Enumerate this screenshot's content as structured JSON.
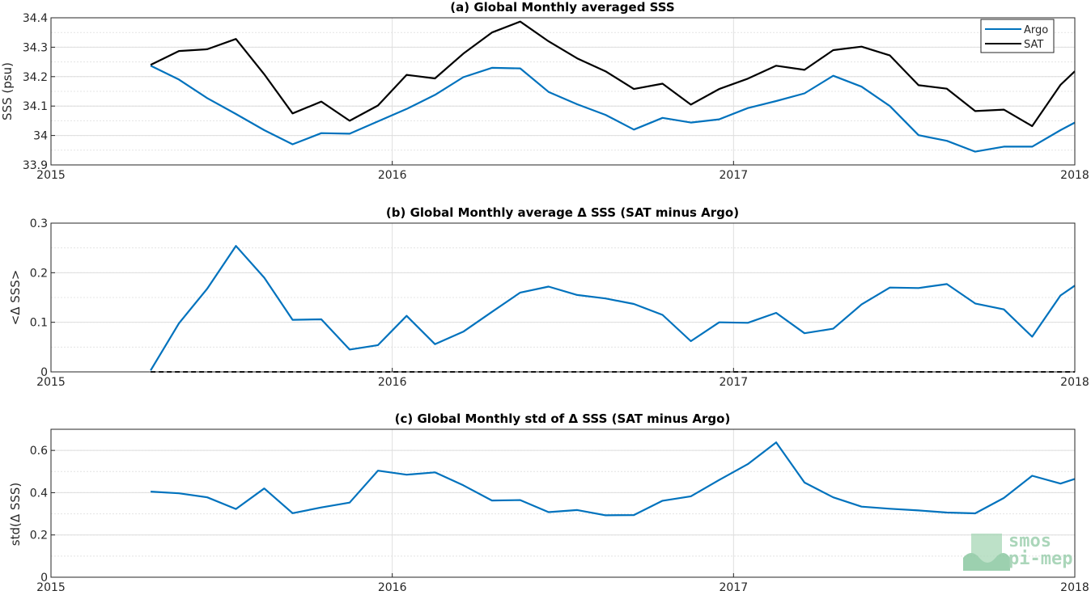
{
  "chart_data": [
    {
      "type": "line",
      "title": "(a) Global Monthly averaged SSS",
      "ylabel": "SSS (psu)",
      "xlabel": "",
      "xlim": [
        2015,
        2018
      ],
      "ylim": [
        33.9,
        34.4
      ],
      "xticks": [
        "2015",
        "2016",
        "2017",
        "2018"
      ],
      "yticks": [
        "33.9",
        "34",
        "34.1",
        "34.2",
        "34.3",
        "34.4"
      ],
      "grid": true,
      "legend": "top-right",
      "x": [
        2015.292,
        2015.375,
        2015.458,
        2015.542,
        2015.625,
        2015.708,
        2015.792,
        2015.875,
        2015.958,
        2016.042,
        2016.125,
        2016.208,
        2016.292,
        2016.375,
        2016.458,
        2016.542,
        2016.625,
        2016.708,
        2016.792,
        2016.875,
        2016.958,
        2017.042,
        2017.125,
        2017.208,
        2017.292,
        2017.375,
        2017.458,
        2017.542,
        2017.625,
        2017.708,
        2017.792,
        2017.875,
        2017.958,
        2018.0
      ],
      "series": [
        {
          "name": "Argo",
          "color": "#0072BD",
          "values": [
            34.237,
            34.19,
            34.127,
            34.073,
            34.018,
            33.97,
            34.008,
            34.006,
            34.048,
            34.09,
            34.138,
            34.198,
            34.23,
            34.228,
            34.148,
            34.106,
            34.07,
            34.02,
            34.06,
            34.044,
            34.055,
            34.093,
            34.117,
            34.143,
            34.203,
            34.166,
            34.1,
            34.001,
            33.982,
            33.945,
            33.962,
            33.962,
            34.018,
            34.044
          ]
        },
        {
          "name": "SAT",
          "color": "#000000",
          "values": [
            34.24,
            34.287,
            34.293,
            34.328,
            34.208,
            34.075,
            34.115,
            34.05,
            34.102,
            34.206,
            34.194,
            34.278,
            34.35,
            34.387,
            34.32,
            34.262,
            34.218,
            34.158,
            34.176,
            34.105,
            34.158,
            34.193,
            34.237,
            34.223,
            34.29,
            34.302,
            34.272,
            34.171,
            34.159,
            34.083,
            34.088,
            34.032,
            34.172,
            34.218
          ]
        }
      ]
    },
    {
      "type": "line",
      "title": "(b) Global Monthly average Δ SSS (SAT minus Argo)",
      "ylabel": "<Δ SSS>",
      "xlabel": "",
      "xlim": [
        2015,
        2018
      ],
      "ylim": [
        0,
        0.3
      ],
      "xticks": [
        "2015",
        "2016",
        "2017",
        "2018"
      ],
      "yticks": [
        "0",
        "0.1",
        "0.2",
        "0.3"
      ],
      "grid": true,
      "zero_line": {
        "value": 0,
        "style": "dashed",
        "color": "#000000"
      },
      "x": [
        2015.292,
        2015.375,
        2015.458,
        2015.542,
        2015.625,
        2015.708,
        2015.792,
        2015.875,
        2015.958,
        2016.042,
        2016.125,
        2016.208,
        2016.292,
        2016.375,
        2016.458,
        2016.542,
        2016.625,
        2016.708,
        2016.792,
        2016.875,
        2016.958,
        2017.042,
        2017.125,
        2017.208,
        2017.292,
        2017.375,
        2017.458,
        2017.542,
        2017.625,
        2017.708,
        2017.792,
        2017.875,
        2017.958,
        2018.0
      ],
      "series": [
        {
          "color": "#0072BD",
          "values": [
            0.003,
            0.098,
            0.168,
            0.254,
            0.19,
            0.105,
            0.106,
            0.045,
            0.054,
            0.113,
            0.056,
            0.081,
            0.121,
            0.16,
            0.172,
            0.155,
            0.148,
            0.137,
            0.115,
            0.062,
            0.1,
            0.099,
            0.119,
            0.078,
            0.087,
            0.136,
            0.17,
            0.169,
            0.177,
            0.138,
            0.126,
            0.071,
            0.154,
            0.174
          ]
        }
      ]
    },
    {
      "type": "line",
      "title": "(c) Global Monthly std of Δ SSS (SAT minus Argo)",
      "ylabel": "std(Δ SSS)",
      "xlabel": "",
      "xlim": [
        2015,
        2018
      ],
      "ylim": [
        0,
        0.7
      ],
      "xticks": [
        "2015",
        "2016",
        "2017",
        "2018"
      ],
      "yticks": [
        "0",
        "0.2",
        "0.4",
        "0.6"
      ],
      "grid": true,
      "x": [
        2015.292,
        2015.375,
        2015.458,
        2015.542,
        2015.625,
        2015.708,
        2015.792,
        2015.875,
        2015.958,
        2016.042,
        2016.125,
        2016.208,
        2016.292,
        2016.375,
        2016.458,
        2016.542,
        2016.625,
        2016.708,
        2016.792,
        2016.875,
        2016.958,
        2017.042,
        2017.125,
        2017.208,
        2017.292,
        2017.375,
        2017.458,
        2017.542,
        2017.625,
        2017.708,
        2017.792,
        2017.875,
        2017.958,
        2018.0
      ],
      "series": [
        {
          "color": "#0072BD",
          "values": [
            0.405,
            0.397,
            0.378,
            0.323,
            0.42,
            0.303,
            0.33,
            0.353,
            0.504,
            0.485,
            0.496,
            0.435,
            0.363,
            0.365,
            0.308,
            0.318,
            0.293,
            0.294,
            0.362,
            0.383,
            0.46,
            0.535,
            0.638,
            0.448,
            0.378,
            0.334,
            0.324,
            0.316,
            0.306,
            0.302,
            0.375,
            0.48,
            0.443,
            0.465
          ]
        }
      ]
    }
  ],
  "logo": {
    "line1": "smos",
    "line2": "pi-mep"
  }
}
